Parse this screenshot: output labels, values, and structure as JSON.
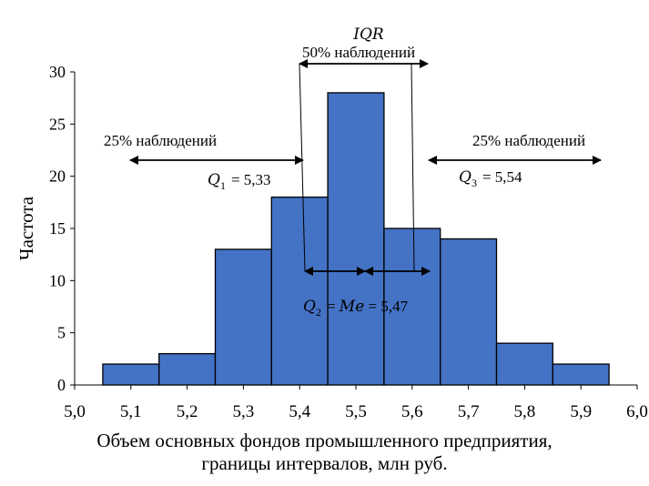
{
  "chart_data": {
    "type": "bar",
    "ylabel": "Частота",
    "xlabel_line1": "Объем основных фондов промышленного предприятия,",
    "xlabel_line2": "границы интервалов, млн руб.",
    "x_ticks": [
      "5,0",
      "5,1",
      "5,2",
      "5,3",
      "5,4",
      "5,5",
      "5,6",
      "5,7",
      "5,8",
      "5,9",
      "6,0"
    ],
    "y_ticks": [
      "0",
      "5",
      "10",
      "15",
      "20",
      "25",
      "30"
    ],
    "ylim": [
      0,
      30
    ],
    "xlim": [
      5.0,
      6.0
    ],
    "bins": [
      {
        "x0": 5.05,
        "x1": 5.15,
        "value": 2
      },
      {
        "x0": 5.15,
        "x1": 5.25,
        "value": 3
      },
      {
        "x0": 5.25,
        "x1": 5.35,
        "value": 13
      },
      {
        "x0": 5.35,
        "x1": 5.45,
        "value": 18
      },
      {
        "x0": 5.45,
        "x1": 5.55,
        "value": 28
      },
      {
        "x0": 5.55,
        "x1": 5.65,
        "value": 15
      },
      {
        "x0": 5.65,
        "x1": 5.75,
        "value": 14
      },
      {
        "x0": 5.75,
        "x1": 5.85,
        "value": 4
      },
      {
        "x0": 5.85,
        "x1": 5.95,
        "value": 2
      }
    ],
    "bar_color": "#4472C4",
    "annotations": {
      "iqr_label": "IQR",
      "middle_label": "50% наблюдений",
      "left_label": "25% наблюдений",
      "right_label": "25% наблюдений",
      "q1_var": "Q",
      "q1_sub": "1",
      "q1_value": "= 5,33",
      "q3_var": "Q",
      "q3_sub": "3",
      "q3_value": "= 5,54",
      "q2_var": "Q",
      "q2_sub": "2",
      "q2_eq": "= ",
      "q2_me": "Me",
      "q2_value": " = 5,47"
    }
  }
}
